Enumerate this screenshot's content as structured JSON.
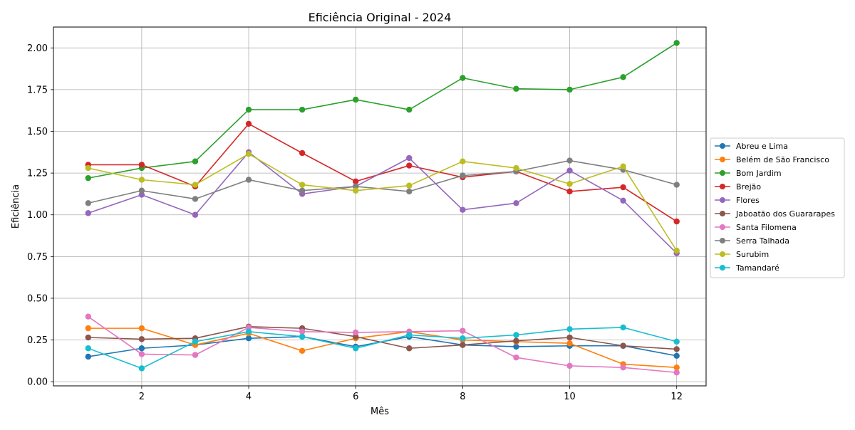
{
  "chart_data": {
    "type": "line",
    "title": "Eficiência Original - 2024",
    "xlabel": "Mês",
    "ylabel": "Eficiência",
    "xlim": [
      0.35,
      12.55
    ],
    "ylim": [
      -0.025,
      2.125
    ],
    "x_ticks": [
      2,
      4,
      6,
      8,
      10,
      12
    ],
    "y_ticks": [
      0.0,
      0.25,
      0.5,
      0.75,
      1.0,
      1.25,
      1.5,
      1.75,
      2.0
    ],
    "y_tick_labels": [
      "0.00",
      "0.25",
      "0.50",
      "0.75",
      "1.00",
      "1.25",
      "1.50",
      "1.75",
      "2.00"
    ],
    "grid": true,
    "legend_position": "outside-right",
    "x": [
      1,
      2,
      3,
      4,
      5,
      6,
      7,
      8,
      9,
      10,
      11,
      12
    ],
    "series": [
      {
        "name": "Abreu e Lima",
        "color": "#1f77b4",
        "values": [
          0.15,
          0.2,
          0.22,
          0.26,
          0.27,
          0.21,
          0.27,
          0.22,
          0.21,
          0.215,
          0.215,
          0.155
        ]
      },
      {
        "name": "Belém de São Francisco",
        "color": "#ff7f0e",
        "values": [
          0.32,
          0.32,
          0.22,
          0.29,
          0.185,
          0.26,
          0.3,
          0.25,
          0.24,
          0.23,
          0.105,
          0.085
        ]
      },
      {
        "name": "Bom Jardim",
        "color": "#2ca02c",
        "values": [
          1.22,
          1.28,
          1.32,
          1.63,
          1.63,
          1.69,
          1.63,
          1.82,
          1.755,
          1.75,
          1.825,
          2.03
        ]
      },
      {
        "name": "Brejão",
        "color": "#d62728",
        "values": [
          1.3,
          1.3,
          1.17,
          1.545,
          1.37,
          1.2,
          1.295,
          1.225,
          1.26,
          1.14,
          1.165,
          0.96
        ]
      },
      {
        "name": "Flores",
        "color": "#9467bd",
        "values": [
          1.01,
          1.12,
          1.0,
          1.375,
          1.125,
          1.17,
          1.34,
          1.03,
          1.07,
          1.265,
          1.085,
          0.77
        ]
      },
      {
        "name": "Jaboatão dos Guararapes",
        "color": "#8c564b",
        "values": [
          0.265,
          0.255,
          0.26,
          0.33,
          0.32,
          0.27,
          0.2,
          0.22,
          0.245,
          0.265,
          0.215,
          0.195
        ]
      },
      {
        "name": "Santa Filomena",
        "color": "#e377c2",
        "values": [
          0.39,
          0.165,
          0.16,
          0.325,
          0.3,
          0.295,
          0.3,
          0.305,
          0.145,
          0.095,
          0.085,
          0.055
        ]
      },
      {
        "name": "Serra Talhada",
        "color": "#7f7f7f",
        "values": [
          1.07,
          1.145,
          1.095,
          1.21,
          1.145,
          1.17,
          1.14,
          1.235,
          1.26,
          1.325,
          1.27,
          1.18
        ]
      },
      {
        "name": "Surubim",
        "color": "#bcbd22",
        "values": [
          1.28,
          1.21,
          1.18,
          1.365,
          1.18,
          1.145,
          1.175,
          1.32,
          1.28,
          1.185,
          1.29,
          0.785
        ]
      },
      {
        "name": "Tamandaré",
        "color": "#17becf",
        "values": [
          0.2,
          0.08,
          0.24,
          0.3,
          0.27,
          0.2,
          0.28,
          0.26,
          0.28,
          0.315,
          0.325,
          0.24
        ]
      }
    ]
  }
}
